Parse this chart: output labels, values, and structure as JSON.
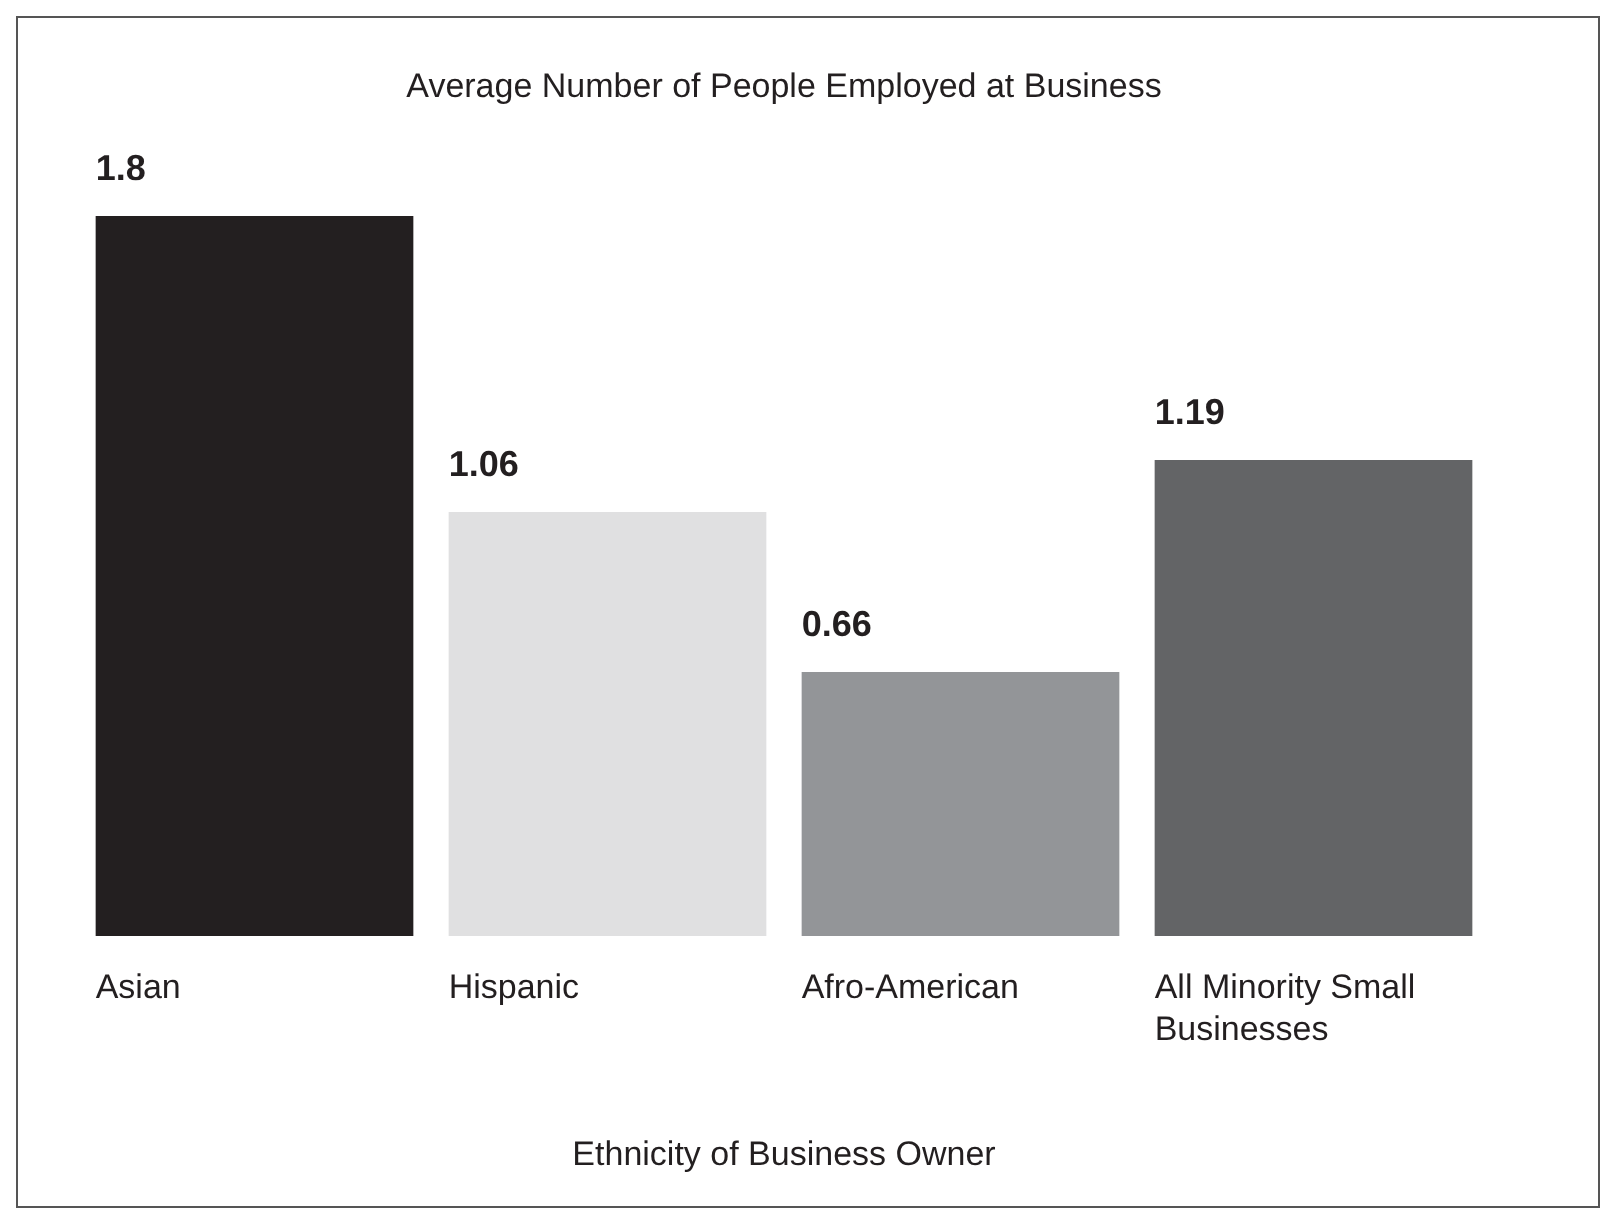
{
  "chart_data": {
    "type": "bar",
    "title": "Average Number of People Employed at Business",
    "xlabel": "Ethnicity of Business Owner",
    "categories": [
      "Asian",
      "Hispanic",
      "Afro-American",
      "All Minority Small Businesses"
    ],
    "values": [
      1.8,
      1.06,
      0.66,
      1.19
    ],
    "colors": [
      "#231f20",
      "#e0e0e1",
      "#939598",
      "#636466"
    ],
    "data_labels": true,
    "legend": false
  }
}
